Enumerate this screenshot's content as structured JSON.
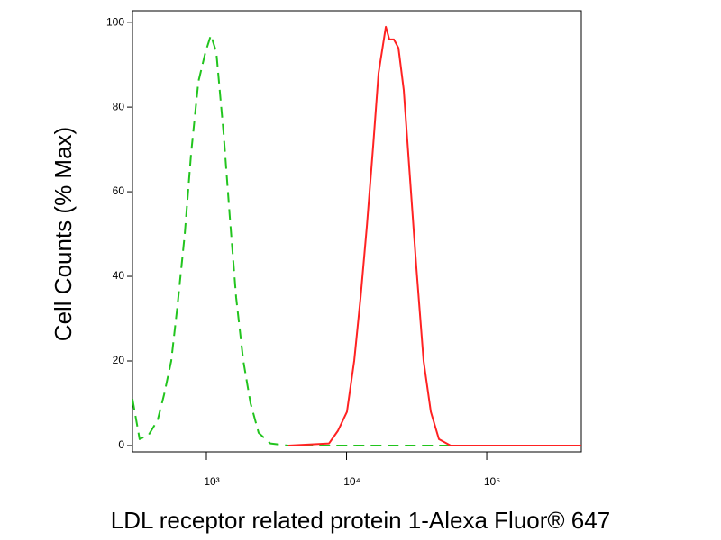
{
  "chart_data": {
    "type": "line",
    "xlabel": "LDL receptor related protein 1-Alexa Fluor® 647",
    "ylabel": "Cell Counts (% Max)",
    "xscale": "log",
    "xlim": [
      297,
      473000
    ],
    "ylim": [
      -1.5,
      102.8
    ],
    "xticks": [
      {
        "value": 1000,
        "label": "10³"
      },
      {
        "value": 10000,
        "label": "10⁴"
      },
      {
        "value": 100000,
        "label": "10⁵"
      }
    ],
    "yticks": [
      0,
      20,
      40,
      60,
      80,
      100
    ],
    "grid": false,
    "series": [
      {
        "color": "#22c41e",
        "dash": true,
        "x": [
          297,
          334,
          387,
          449,
          499,
          561,
          622,
          701,
          778,
          876,
          986,
          1077,
          1177,
          1325,
          1469,
          1630,
          1835,
          2066,
          2359,
          2862,
          3848,
          10000,
          100000,
          473000
        ],
        "values": [
          11,
          1.5,
          2.5,
          6,
          12,
          20,
          33,
          50,
          69,
          86,
          93,
          97,
          93,
          74,
          54,
          35,
          20,
          10,
          3,
          0.5,
          0,
          0,
          0,
          0
        ]
      },
      {
        "color": "#ff2222",
        "dash": false,
        "x": [
          3848,
          7499,
          8690,
          10070,
          11340,
          12590,
          13970,
          15500,
          16920,
          19050,
          20200,
          21760,
          23440,
          25610,
          28400,
          31500,
          35450,
          39930,
          45600,
          55300,
          100000,
          473000
        ],
        "values": [
          0,
          0.5,
          3.5,
          8,
          20,
          35,
          52,
          71,
          88,
          99,
          96,
          96,
          94,
          84,
          63,
          42,
          20,
          8,
          1.5,
          0,
          0,
          0
        ]
      }
    ]
  }
}
